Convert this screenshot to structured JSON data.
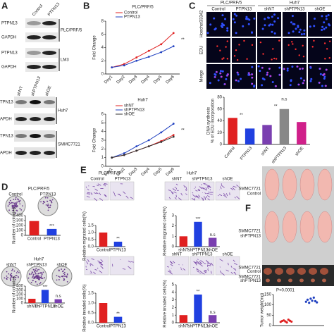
{
  "panel_labels": [
    "A",
    "B",
    "C",
    "D",
    "E",
    "F"
  ],
  "blot_a": {
    "columns": [
      "Control",
      "PTPN13"
    ],
    "groups": [
      {
        "rows": [
          "PTPN13",
          "GAPDH"
        ],
        "label": "PLC/PRF/5"
      },
      {
        "rows": [
          "PTPN13",
          "GAPDH"
        ],
        "label": "LM3"
      }
    ]
  },
  "blot_b": {
    "columns": [
      "shNT",
      "shPTPN13",
      "shOE"
    ],
    "groups": [
      {
        "rows": [
          "TPN13",
          "APDH"
        ],
        "label": "Huh7"
      },
      {
        "rows": [
          "TPN13",
          "APDH"
        ],
        "label": "SMMC7721"
      }
    ]
  },
  "microscopy": {
    "groups": [
      {
        "label": "PLC/PRF/5",
        "columns": [
          "Control",
          "PTPN13"
        ]
      },
      {
        "label": "Huh7",
        "columns": [
          "shNT",
          "shPTPN13",
          "shOE"
        ]
      }
    ],
    "rows": [
      "Hoechst33342",
      "EDU",
      "Merge"
    ]
  },
  "colony": {
    "groups": [
      {
        "label": "PLC/PRF/5",
        "columns": [
          "Control",
          "PTPN13"
        ]
      },
      {
        "label": "Huh7",
        "columns": [
          "shNT",
          "shPTPN13",
          "shOE"
        ]
      }
    ]
  },
  "transwell": {
    "groups": [
      {
        "label": "PLC/PRF/5",
        "columns": [
          "Control",
          "PTPN13"
        ]
      },
      {
        "label": "Huh7",
        "columns": [
          "shNT",
          "shPTPN13",
          "shOE"
        ],
        "lower_columns": [
          "shNT",
          "shPTPN13",
          "shOE"
        ]
      }
    ]
  },
  "mice": {
    "photo_labels": [
      [
        "SMMC7721",
        "Control"
      ],
      [
        "SMMC7721",
        "shPTPN13"
      ]
    ],
    "tumor_labels": [
      [
        "SMMC7721",
        "Control"
      ],
      [
        "SMMC7721",
        "shPTPN13"
      ]
    ]
  },
  "chart_data": [
    {
      "type": "line",
      "title": "PLC/PRF/5",
      "ylabel": "Fold Change",
      "categories": [
        "Day1",
        "Day2",
        "Day3",
        "Day4",
        "Day5",
        "Day6"
      ],
      "series": [
        {
          "name": "Control",
          "color": "#e02020",
          "values": [
            1,
            1.5,
            2.5,
            3.5,
            4.5,
            6.2
          ]
        },
        {
          "name": "PTPN13",
          "color": "#2040c0",
          "values": [
            1,
            1.3,
            2,
            2.6,
            3.3,
            4.2
          ]
        }
      ],
      "ylim": [
        0,
        8
      ],
      "yticks": [
        0,
        2,
        4,
        6,
        8
      ],
      "annotations": [
        "**"
      ]
    },
    {
      "type": "line",
      "title": "Huh7",
      "ylabel": "Fold Change",
      "categories": [
        "Day1",
        "Day2",
        "Day3",
        "Day4",
        "Day5",
        "Day6"
      ],
      "series": [
        {
          "name": "shNT",
          "color": "#e02020",
          "values": [
            1,
            1.3,
            1.8,
            2.3,
            2.9,
            3.6
          ]
        },
        {
          "name": "shPTPN13",
          "color": "#2040c0",
          "values": [
            1,
            1.5,
            2.3,
            3,
            3.9,
            4.9
          ]
        },
        {
          "name": "shOE",
          "color": "#333333",
          "values": [
            1,
            1.3,
            1.8,
            2.3,
            2.8,
            3.4
          ]
        }
      ],
      "ylim": [
        0,
        6
      ],
      "yticks": [
        0,
        1,
        2,
        3,
        4,
        5,
        6
      ],
      "annotations": [
        "**"
      ]
    },
    {
      "type": "bar",
      "ylabel": [
        "DNA synthesis",
        "% of EDU incorporation"
      ],
      "categories": [
        "Control",
        "PTPN13",
        "shNT",
        "shPTPN13",
        "shOE"
      ],
      "values": [
        45,
        27,
        33,
        60,
        38
      ],
      "colors": [
        "#e02020",
        "#2040e0",
        "#7a3fb0",
        "#888888",
        "#d0208a"
      ],
      "ylim": [
        0,
        80
      ],
      "yticks": [
        0,
        20,
        40,
        60,
        80
      ],
      "annotations": [
        "**",
        "**",
        "n.s"
      ]
    },
    {
      "type": "bar",
      "ylabel": "Number of colonies",
      "categories": [
        "Control",
        "PTPN13"
      ],
      "values": [
        290,
        130
      ],
      "colors": [
        "#e02020",
        "#2040e0"
      ],
      "ylim": [
        0,
        400
      ],
      "yticks": [
        0,
        100,
        200,
        300,
        400
      ],
      "annotations": [
        "***"
      ]
    },
    {
      "type": "bar",
      "ylabel": "Number of colonies",
      "categories": [
        "shNT",
        "shPTPN13",
        "shOE"
      ],
      "values": [
        100,
        310,
        90
      ],
      "colors": [
        "#e02020",
        "#2040e0",
        "#7a3fb0"
      ],
      "ylim": [
        0,
        400
      ],
      "yticks": [
        0,
        100,
        200,
        300,
        400
      ],
      "annotations": [
        "***",
        "n.s"
      ]
    },
    {
      "type": "bar",
      "ylabel": "Relative migrated cells(%)",
      "categories": [
        "Control",
        "PTPN13"
      ],
      "values": [
        1.0,
        0.35
      ],
      "colors": [
        "#e02020",
        "#2040e0"
      ],
      "ylim": [
        0,
        1.5
      ],
      "yticks": [
        {
          "value": 0,
          "label": "0.0"
        },
        {
          "value": 0.5,
          "label": "0.5"
        },
        {
          "value": 1,
          "label": "1.0"
        },
        {
          "value": 1.5,
          "label": "1.5"
        }
      ],
      "annotations": [
        "**"
      ]
    },
    {
      "type": "bar",
      "ylabel": "Relative migrated cells(%)",
      "categories": [
        "shNT",
        "shPTPN13",
        "shOE"
      ],
      "values": [
        1.0,
        2.4,
        0.85
      ],
      "colors": [
        "#e02020",
        "#2040e0",
        "#7a3fb0"
      ],
      "ylim": [
        0,
        3
      ],
      "yticks": [
        0,
        1,
        2,
        3
      ],
      "annotations": [
        "***",
        "n.s"
      ]
    },
    {
      "type": "bar",
      "ylabel": "Relative invaded cells(%)",
      "categories": [
        "Control",
        "PTPN13"
      ],
      "values": [
        1.0,
        0.3
      ],
      "colors": [
        "#e02020",
        "#2040e0"
      ],
      "ylim": [
        0,
        1.5
      ],
      "yticks": [
        {
          "value": 0,
          "label": "0.0"
        },
        {
          "value": 0.5,
          "label": "0.5"
        },
        {
          "value": 1,
          "label": "1.0"
        },
        {
          "value": 1.5,
          "label": "1.5"
        }
      ],
      "annotations": [
        "**"
      ]
    },
    {
      "type": "bar",
      "ylabel": "Relative invaded cells(%)",
      "categories": [
        "shNT",
        "shPTPN13",
        "shOE"
      ],
      "values": [
        1.0,
        3.7,
        1.0
      ],
      "colors": [
        "#e02020",
        "#2040e0",
        "#7a3fb0"
      ],
      "ylim": [
        0,
        5
      ],
      "yticks": [
        0,
        1,
        2,
        3,
        4,
        5
      ],
      "annotations": [
        "**",
        "n.s"
      ]
    },
    {
      "type": "scatter",
      "ylabel": "Tumor weight(mg)",
      "series": [
        {
          "color": "#e02020",
          "values": [
            18,
            22,
            25,
            20,
            15,
            28,
            23,
            19
          ]
        },
        {
          "color": "#2040c0",
          "values": [
            115,
            125,
            110,
            130,
            120,
            135,
            118,
            112
          ]
        }
      ],
      "ylim": [
        0,
        150
      ],
      "yticks": [
        0,
        50,
        100,
        150
      ],
      "annotations": [
        "P<0.0001"
      ]
    }
  ]
}
